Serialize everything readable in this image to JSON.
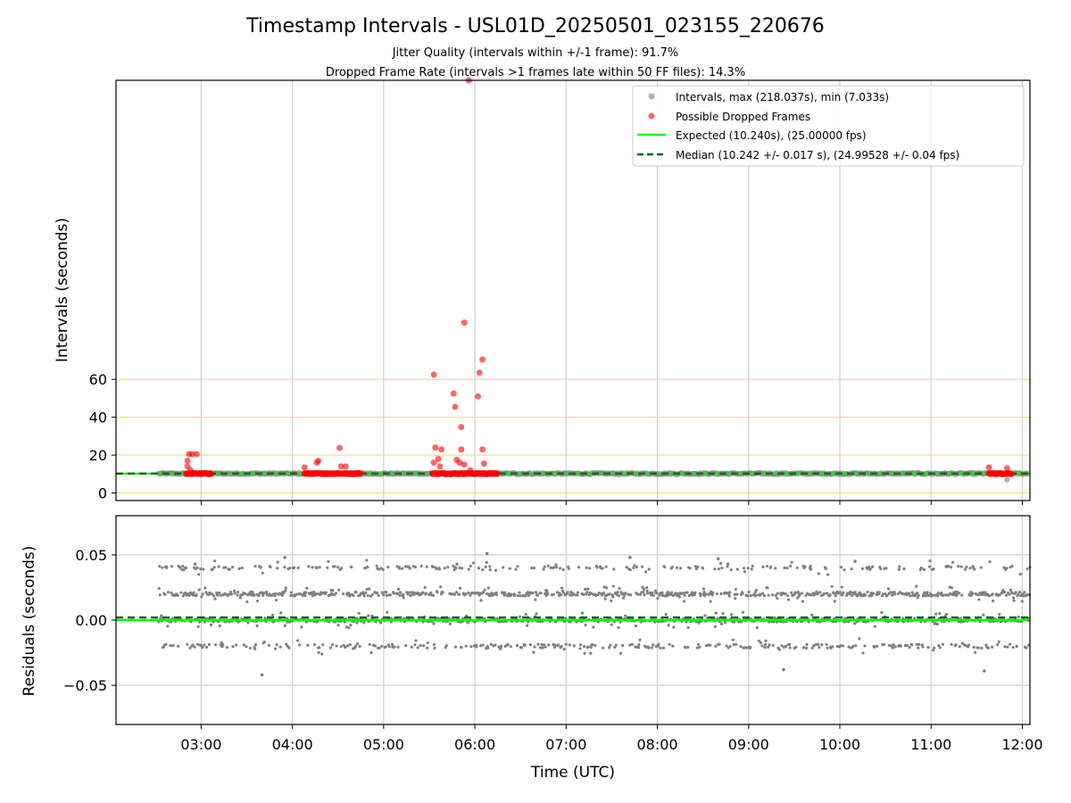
{
  "chart_data": [
    {
      "type": "scatter",
      "title": "Timestamp Intervals - USL01D_20250501_023155_220676",
      "subtitle_lines": [
        "Jitter Quality (intervals within +/-1 frame): 91.7%",
        "Dropped Frame Rate (intervals >1 frames late within 50 FF files): 14.3%"
      ],
      "ylabel": "Intervals (seconds)",
      "ylim": [
        -4,
        218
      ],
      "y_ticks": [
        0,
        20,
        40,
        60
      ],
      "reference_lines": [
        0,
        20,
        40,
        60
      ],
      "reference_line_color": "#ffd25a",
      "x_ticks": [
        "03:00",
        "04:00",
        "05:00",
        "06:00",
        "07:00",
        "08:00",
        "09:00",
        "10:00",
        "11:00",
        "12:00"
      ],
      "xlim": [
        "02:04",
        "12:05"
      ],
      "grid": "vertical",
      "legend_position": "top-right",
      "series": [
        {
          "name": "Intervals, max (218.037s), min (7.033s)",
          "color": "#808080",
          "summary": {
            "max": 218.037,
            "min": 7.033,
            "typical": 10.24
          },
          "range": [
            "02:32",
            "12:04"
          ],
          "notable_points": [
            {
              "x": "11:50",
              "y": 7.0
            }
          ]
        },
        {
          "name": "Possible Dropped Frames",
          "color": "#ff0000",
          "clusters": [
            {
              "range": [
                "02:50",
                "03:07"
              ],
              "y": 10.24
            },
            {
              "range": [
                "04:08",
                "04:45"
              ],
              "y": 10.24
            },
            {
              "range": [
                "05:32",
                "06:15"
              ],
              "y": 10.24
            },
            {
              "range": [
                "11:38",
                "11:53"
              ],
              "y": 10.24
            }
          ],
          "points": [
            {
              "x": "02:52",
              "y": 20.5
            },
            {
              "x": "02:54",
              "y": 20.5
            },
            {
              "x": "02:57",
              "y": 20.5
            },
            {
              "x": "02:51",
              "y": 17.0
            },
            {
              "x": "02:51",
              "y": 14.0
            },
            {
              "x": "02:53",
              "y": 12.0
            },
            {
              "x": "04:08",
              "y": 13.5
            },
            {
              "x": "04:16",
              "y": 16.0
            },
            {
              "x": "04:17",
              "y": 17.0
            },
            {
              "x": "04:31",
              "y": 23.8
            },
            {
              "x": "04:32",
              "y": 14.0
            },
            {
              "x": "04:35",
              "y": 14.0
            },
            {
              "x": "05:33",
              "y": 62.5
            },
            {
              "x": "05:34",
              "y": 24.0
            },
            {
              "x": "05:33",
              "y": 16.0
            },
            {
              "x": "05:36",
              "y": 18.0
            },
            {
              "x": "05:37",
              "y": 14.0
            },
            {
              "x": "05:38",
              "y": 23.0
            },
            {
              "x": "05:46",
              "y": 52.5
            },
            {
              "x": "05:47",
              "y": 45.5
            },
            {
              "x": "05:48",
              "y": 17.5
            },
            {
              "x": "05:50",
              "y": 16.0
            },
            {
              "x": "05:51",
              "y": 23.0
            },
            {
              "x": "05:51",
              "y": 34.8
            },
            {
              "x": "05:53",
              "y": 90.0
            },
            {
              "x": "05:56",
              "y": 218.0
            },
            {
              "x": "06:02",
              "y": 51.0
            },
            {
              "x": "06:03",
              "y": 63.5
            },
            {
              "x": "06:05",
              "y": 70.5
            },
            {
              "x": "06:05",
              "y": 23.0
            },
            {
              "x": "06:06",
              "y": 15.5
            },
            {
              "x": "05:53",
              "y": 15.0
            },
            {
              "x": "05:57",
              "y": 12.0
            },
            {
              "x": "11:38",
              "y": 13.5
            },
            {
              "x": "11:50",
              "y": 13.0
            }
          ]
        },
        {
          "name": "Expected (10.240s), (25.00000 fps)",
          "color": "#00ff00",
          "value": 10.24,
          "style": "solid"
        },
        {
          "name": "Median (10.242 +/- 0.017 s), (24.99528 +/- 0.04 fps)",
          "color": "#006400",
          "value": 10.242,
          "style": "dashed"
        }
      ]
    },
    {
      "type": "scatter",
      "xlabel": "Time (UTC)",
      "ylabel": "Residuals (seconds)",
      "ylim": [
        -0.08,
        0.08
      ],
      "y_ticks": [
        -0.05,
        0.0,
        0.05
      ],
      "y_tick_labels": [
        "−0.05",
        "0.00",
        "0.05"
      ],
      "x_ticks": [
        "03:00",
        "04:00",
        "05:00",
        "06:00",
        "07:00",
        "08:00",
        "09:00",
        "10:00",
        "11:00",
        "12:00"
      ],
      "xlim": [
        "02:04",
        "12:05"
      ],
      "grid": "both",
      "series": [
        {
          "name": "Residuals",
          "color": "#808080",
          "bands": [
            0.04,
            0.02,
            0.0,
            -0.02
          ],
          "band_spread": 0.0015,
          "range": [
            "02:32",
            "12:05"
          ],
          "outliers": [
            {
              "x": "03:40",
              "y": -0.042
            },
            {
              "x": "06:08",
              "y": 0.051
            },
            {
              "x": "11:35",
              "y": -0.039
            },
            {
              "x": "02:56",
              "y": 0.043
            },
            {
              "x": "03:55",
              "y": 0.048
            },
            {
              "x": "07:42",
              "y": 0.048
            },
            {
              "x": "08:40",
              "y": 0.047
            },
            {
              "x": "09:23",
              "y": -0.038
            },
            {
              "x": "10:10",
              "y": 0.045
            }
          ]
        },
        {
          "name": "Expected",
          "color": "#00ff00",
          "value": 0.0,
          "style": "solid"
        },
        {
          "name": "Median",
          "color": "#006400",
          "value": 0.002,
          "style": "dashed"
        }
      ]
    }
  ]
}
